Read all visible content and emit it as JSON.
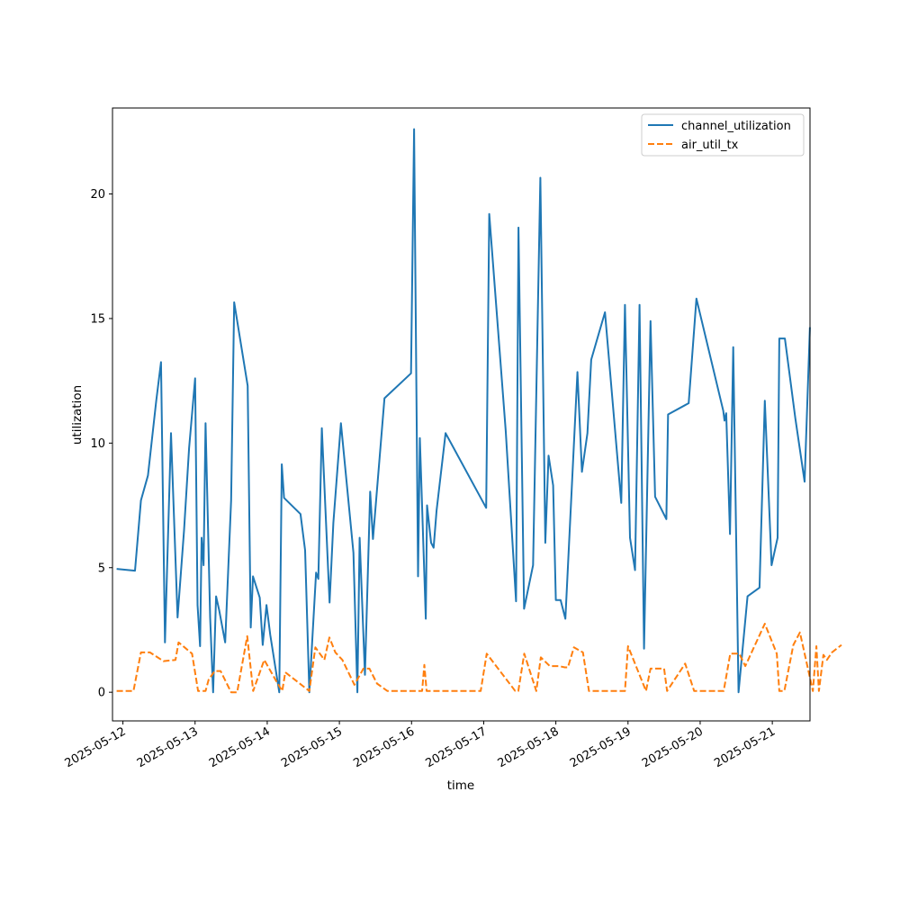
{
  "chart_data": {
    "type": "line",
    "title": "",
    "xlabel": "time",
    "ylabel": "utilization",
    "x_ticks": [
      "2025-05-12",
      "2025-05-13",
      "2025-05-14",
      "2025-05-15",
      "2025-05-16",
      "2025-05-17",
      "2025-05-18",
      "2025-05-19",
      "2025-05-20",
      "2025-05-21"
    ],
    "y_ticks": [
      0,
      5,
      10,
      15,
      20
    ],
    "xlim": [
      "2025-05-11T20:32",
      "2025-05-21T12:32"
    ],
    "ylim": [
      -1.15,
      23.45
    ],
    "grid": false,
    "legend_position": "top-right",
    "series": [
      {
        "name": "channel_utilization",
        "color": "#1f77b4",
        "dash": "solid",
        "points": [
          [
            "2025-05-11T21:55",
            4.95
          ],
          [
            "2025-05-12T04:01",
            4.88
          ],
          [
            "2025-05-12T06:00",
            7.7
          ],
          [
            "2025-05-12T08:20",
            8.7
          ],
          [
            "2025-05-12T11:05",
            11.7
          ],
          [
            "2025-05-12T12:40",
            13.25
          ],
          [
            "2025-05-12T14:00",
            2.0
          ],
          [
            "2025-05-12T16:00",
            10.4
          ],
          [
            "2025-05-12T18:10",
            3.0
          ],
          [
            "2025-05-12T20:20",
            6.5
          ],
          [
            "2025-05-12T22:00",
            9.8
          ],
          [
            "2025-05-13T00:00",
            12.6
          ],
          [
            "2025-05-13T00:50",
            3.5
          ],
          [
            "2025-05-13T01:40",
            1.85
          ],
          [
            "2025-05-13T02:10",
            6.2
          ],
          [
            "2025-05-13T02:50",
            5.1
          ],
          [
            "2025-05-13T03:30",
            10.8
          ],
          [
            "2025-05-13T05:00",
            3.0
          ],
          [
            "2025-05-13T06:00",
            0.0
          ],
          [
            "2025-05-13T07:00",
            3.85
          ],
          [
            "2025-05-13T08:00",
            3.3
          ],
          [
            "2025-05-13T10:00",
            2.0
          ],
          [
            "2025-05-13T12:00",
            7.7
          ],
          [
            "2025-05-13T13:00",
            15.65
          ],
          [
            "2025-05-13T17:30",
            12.3
          ],
          [
            "2025-05-13T18:30",
            2.6
          ],
          [
            "2025-05-13T19:15",
            4.65
          ],
          [
            "2025-05-13T21:30",
            3.8
          ],
          [
            "2025-05-13T22:30",
            1.9
          ],
          [
            "2025-05-13T23:45",
            3.5
          ],
          [
            "2025-05-14T01:00",
            2.3
          ],
          [
            "2025-05-14T04:00",
            0.0
          ],
          [
            "2025-05-14T04:50",
            9.15
          ],
          [
            "2025-05-14T05:35",
            7.8
          ],
          [
            "2025-05-14T11:05",
            7.15
          ],
          [
            "2025-05-14T12:35",
            5.7
          ],
          [
            "2025-05-14T14:00",
            0.0
          ],
          [
            "2025-05-14T16:15",
            4.8
          ],
          [
            "2025-05-14T17:00",
            4.55
          ],
          [
            "2025-05-14T18:10",
            10.6
          ],
          [
            "2025-05-14T20:45",
            3.6
          ],
          [
            "2025-05-14T22:00",
            6.8
          ],
          [
            "2025-05-15T00:30",
            10.8
          ],
          [
            "2025-05-15T04:40",
            5.6
          ],
          [
            "2025-05-15T06:00",
            0.0
          ],
          [
            "2025-05-15T06:45",
            6.2
          ],
          [
            "2025-05-15T08:30",
            0.7
          ],
          [
            "2025-05-15T10:15",
            8.05
          ],
          [
            "2025-05-15T11:10",
            6.15
          ],
          [
            "2025-05-15T15:00",
            11.8
          ],
          [
            "2025-05-15T23:50",
            12.8
          ],
          [
            "2025-05-16T00:50",
            22.6
          ],
          [
            "2025-05-16T02:10",
            4.65
          ],
          [
            "2025-05-16T02:45",
            10.2
          ],
          [
            "2025-05-16T04:45",
            2.95
          ],
          [
            "2025-05-16T05:10",
            7.5
          ],
          [
            "2025-05-16T06:30",
            6.0
          ],
          [
            "2025-05-16T07:20",
            5.8
          ],
          [
            "2025-05-16T08:20",
            7.3
          ],
          [
            "2025-05-16T11:20",
            10.4
          ],
          [
            "2025-05-17T00:50",
            7.4
          ],
          [
            "2025-05-17T01:50",
            19.2
          ],
          [
            "2025-05-17T07:20",
            10.5
          ],
          [
            "2025-05-17T10:45",
            3.65
          ],
          [
            "2025-05-17T11:35",
            18.65
          ],
          [
            "2025-05-17T13:25",
            3.35
          ],
          [
            "2025-05-17T16:25",
            5.1
          ],
          [
            "2025-05-17T18:50",
            20.65
          ],
          [
            "2025-05-17T20:30",
            6.0
          ],
          [
            "2025-05-17T21:35",
            9.5
          ],
          [
            "2025-05-17T23:05",
            8.3
          ],
          [
            "2025-05-18T00:00",
            3.7
          ],
          [
            "2025-05-18T01:35",
            3.7
          ],
          [
            "2025-05-18T03:10",
            2.95
          ],
          [
            "2025-05-18T07:10",
            12.85
          ],
          [
            "2025-05-18T08:40",
            8.85
          ],
          [
            "2025-05-18T10:30",
            10.4
          ],
          [
            "2025-05-18T11:45",
            13.35
          ],
          [
            "2025-05-18T16:20",
            15.25
          ],
          [
            "2025-05-18T21:45",
            7.6
          ],
          [
            "2025-05-18T23:00",
            15.55
          ],
          [
            "2025-05-19T00:40",
            6.2
          ],
          [
            "2025-05-19T02:20",
            4.9
          ],
          [
            "2025-05-19T03:50",
            15.55
          ],
          [
            "2025-05-19T05:20",
            1.75
          ],
          [
            "2025-05-19T07:30",
            14.9
          ],
          [
            "2025-05-19T09:00",
            7.85
          ],
          [
            "2025-05-19T12:45",
            6.95
          ],
          [
            "2025-05-19T13:20",
            11.15
          ],
          [
            "2025-05-19T20:10",
            11.6
          ],
          [
            "2025-05-19T22:45",
            15.8
          ],
          [
            "2025-05-20T07:40",
            11.3
          ],
          [
            "2025-05-20T08:05",
            10.9
          ],
          [
            "2025-05-20T08:40",
            11.2
          ],
          [
            "2025-05-20T09:55",
            6.35
          ],
          [
            "2025-05-20T11:00",
            13.85
          ],
          [
            "2025-05-20T12:45",
            0.0
          ],
          [
            "2025-05-20T15:45",
            3.85
          ],
          [
            "2025-05-20T19:45",
            4.2
          ],
          [
            "2025-05-20T21:30",
            11.7
          ],
          [
            "2025-05-20T23:45",
            5.1
          ],
          [
            "2025-05-21T01:45",
            6.2
          ],
          [
            "2025-05-21T02:20",
            14.2
          ],
          [
            "2025-05-21T04:10",
            14.2
          ],
          [
            "2025-05-21T07:40",
            11.0
          ],
          [
            "2025-05-21T10:45",
            8.45
          ],
          [
            "2025-05-21T12:30",
            14.65
          ]
        ]
      },
      {
        "name": "air_util_tx",
        "color": "#ff7f0e",
        "dash": "dashed",
        "points": [
          [
            "2025-05-11T21:55",
            0.05
          ],
          [
            "2025-05-12T03:30",
            0.05
          ],
          [
            "2025-05-12T06:00",
            1.6
          ],
          [
            "2025-05-12T09:00",
            1.6
          ],
          [
            "2025-05-12T13:30",
            1.25
          ],
          [
            "2025-05-12T17:30",
            1.3
          ],
          [
            "2025-05-12T18:30",
            2.0
          ],
          [
            "2025-05-12T20:30",
            1.8
          ],
          [
            "2025-05-12T23:00",
            1.55
          ],
          [
            "2025-05-13T01:00",
            0.05
          ],
          [
            "2025-05-13T03:30",
            0.05
          ],
          [
            "2025-05-13T04:30",
            0.5
          ],
          [
            "2025-05-13T06:30",
            0.85
          ],
          [
            "2025-05-13T08:30",
            0.85
          ],
          [
            "2025-05-13T12:00",
            0.0
          ],
          [
            "2025-05-13T14:00",
            0.0
          ],
          [
            "2025-05-13T17:20",
            2.25
          ],
          [
            "2025-05-13T19:20",
            0.05
          ],
          [
            "2025-05-13T23:00",
            1.3
          ],
          [
            "2025-05-14T03:00",
            0.45
          ],
          [
            "2025-05-14T05:00",
            0.05
          ],
          [
            "2025-05-14T06:00",
            0.8
          ],
          [
            "2025-05-14T14:00",
            0.05
          ],
          [
            "2025-05-14T16:00",
            1.8
          ],
          [
            "2025-05-14T19:00",
            1.3
          ],
          [
            "2025-05-14T20:40",
            2.2
          ],
          [
            "2025-05-14T22:40",
            1.6
          ],
          [
            "2025-05-15T01:00",
            1.3
          ],
          [
            "2025-05-15T05:00",
            0.3
          ],
          [
            "2025-05-15T08:00",
            0.95
          ],
          [
            "2025-05-15T10:00",
            0.95
          ],
          [
            "2025-05-15T12:30",
            0.35
          ],
          [
            "2025-05-15T16:00",
            0.05
          ],
          [
            "2025-05-15T19:00",
            0.05
          ],
          [
            "2025-05-16T03:30",
            0.05
          ],
          [
            "2025-05-16T04:15",
            1.1
          ],
          [
            "2025-05-16T05:00",
            0.05
          ],
          [
            "2025-05-16T23:00",
            0.05
          ],
          [
            "2025-05-17T01:00",
            1.55
          ],
          [
            "2025-05-17T10:30",
            0.05
          ],
          [
            "2025-05-17T11:30",
            0.05
          ],
          [
            "2025-05-17T13:30",
            1.55
          ],
          [
            "2025-05-17T17:30",
            0.05
          ],
          [
            "2025-05-17T19:00",
            1.4
          ],
          [
            "2025-05-17T22:00",
            1.05
          ],
          [
            "2025-05-18T01:00",
            1.05
          ],
          [
            "2025-05-18T03:00",
            1.0
          ],
          [
            "2025-05-18T04:00",
            1.0
          ],
          [
            "2025-05-18T06:00",
            1.8
          ],
          [
            "2025-05-18T09:00",
            1.6
          ],
          [
            "2025-05-18T11:00",
            0.05
          ],
          [
            "2025-05-18T23:00",
            0.05
          ],
          [
            "2025-05-19T00:00",
            1.85
          ],
          [
            "2025-05-19T06:00",
            0.05
          ],
          [
            "2025-05-19T07:30",
            0.95
          ],
          [
            "2025-05-19T12:00",
            0.95
          ],
          [
            "2025-05-19T13:00",
            0.05
          ],
          [
            "2025-05-19T19:00",
            1.15
          ],
          [
            "2025-05-19T22:00",
            0.05
          ],
          [
            "2025-05-20T07:50",
            0.05
          ],
          [
            "2025-05-20T10:00",
            1.55
          ],
          [
            "2025-05-20T13:00",
            1.55
          ],
          [
            "2025-05-20T15:00",
            1.05
          ],
          [
            "2025-05-20T21:30",
            2.75
          ],
          [
            "2025-05-21T01:30",
            1.55
          ],
          [
            "2025-05-21T02:20",
            0.05
          ],
          [
            "2025-05-21T04:00",
            0.05
          ],
          [
            "2025-05-21T07:00",
            1.9
          ],
          [
            "2025-05-21T09:10",
            2.4
          ],
          [
            "2025-05-21T13:30",
            0.05
          ],
          [
            "2025-05-21T14:40",
            1.85
          ],
          [
            "2025-05-21T15:30",
            0.05
          ],
          [
            "2025-05-21T17:00",
            1.5
          ],
          [
            "2025-05-21T18:10",
            1.3
          ],
          [
            "2025-05-21T19:50",
            1.6
          ],
          [
            "2025-05-21T23:00",
            1.9
          ]
        ]
      }
    ]
  }
}
